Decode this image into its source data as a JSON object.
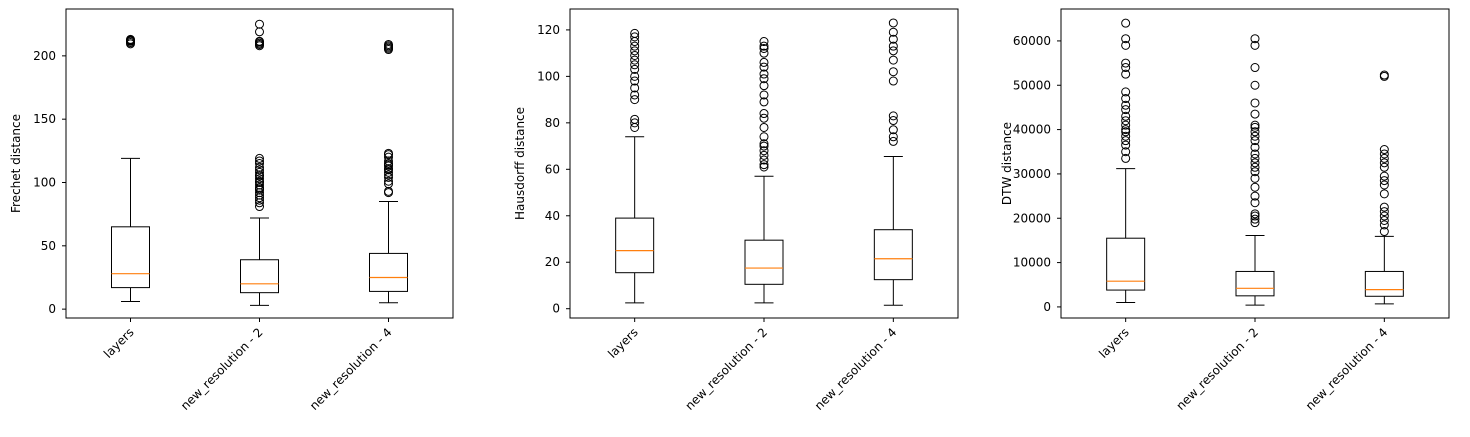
{
  "chart_data": [
    {
      "type": "boxplot",
      "ylabel": "Frechet distance",
      "categories": [
        "layers",
        "new_resolution - 2",
        "new_resolution - 4"
      ],
      "ylim": [
        -7,
        237
      ],
      "yticks": [
        0,
        50,
        100,
        150,
        200
      ],
      "ytick_labels": [
        "0",
        "50",
        "100",
        "150",
        "200"
      ],
      "boxes": [
        {
          "whislo": 6,
          "q1": 17,
          "med": 28,
          "q3": 65,
          "whishi": 119,
          "fliers": [
            209.5,
            210.5,
            211.5,
            212,
            212.5,
            213
          ]
        },
        {
          "whislo": 3,
          "q1": 13,
          "med": 20,
          "q3": 39,
          "whishi": 72,
          "fliers": [
            81,
            84,
            86,
            88,
            90,
            92,
            94,
            95,
            96,
            98,
            100,
            101,
            103,
            105,
            106,
            108,
            110,
            112,
            115,
            117,
            119,
            208,
            209,
            210,
            211,
            211.5,
            219,
            225
          ]
        },
        {
          "whislo": 5,
          "q1": 14,
          "med": 25,
          "q3": 44,
          "whishi": 85,
          "fliers": [
            92,
            93,
            99,
            101,
            104,
            106,
            108,
            110,
            111,
            113,
            114,
            115,
            117,
            120,
            122,
            123,
            205,
            206,
            207,
            208,
            209
          ]
        }
      ]
    },
    {
      "type": "boxplot",
      "ylabel": "Hausdorff distance",
      "categories": [
        "layers",
        "new_resolution - 2",
        "new_resolution - 4"
      ],
      "ylim": [
        -4,
        129
      ],
      "yticks": [
        0,
        20,
        40,
        60,
        80,
        100,
        120
      ],
      "ytick_labels": [
        "0",
        "20",
        "40",
        "60",
        "80",
        "100",
        "120"
      ],
      "boxes": [
        {
          "whislo": 2.5,
          "q1": 15.5,
          "med": 25,
          "q3": 39,
          "whishi": 74,
          "fliers": [
            78,
            80,
            81.5,
            90,
            92,
            95,
            98,
            100,
            103,
            105,
            107,
            109,
            111,
            113,
            115,
            117,
            118.5
          ]
        },
        {
          "whislo": 2.5,
          "q1": 10.5,
          "med": 17.5,
          "q3": 29.5,
          "whishi": 57,
          "fliers": [
            61,
            62,
            64,
            66,
            68,
            70,
            71,
            74,
            78,
            82,
            84,
            89,
            92,
            96,
            99,
            101,
            104,
            106,
            110,
            112,
            113,
            115
          ]
        },
        {
          "whislo": 1.5,
          "q1": 12.5,
          "med": 21.5,
          "q3": 34,
          "whishi": 65.5,
          "fliers": [
            72,
            74,
            77,
            81,
            83,
            98,
            102,
            107,
            111,
            113,
            116,
            119,
            123
          ]
        }
      ]
    },
    {
      "type": "boxplot",
      "ylabel": "DTW distance",
      "categories": [
        "layers",
        "new_resolution - 2",
        "new_resolution - 4"
      ],
      "ylim": [
        -2500,
        67200
      ],
      "yticks": [
        0,
        10000,
        20000,
        30000,
        40000,
        50000,
        60000
      ],
      "ytick_labels": [
        "0",
        "10000",
        "20000",
        "30000",
        "40000",
        "50000",
        "60000"
      ],
      "boxes": [
        {
          "whislo": 1000,
          "q1": 3800,
          "med": 5800,
          "q3": 15500,
          "whishi": 31200,
          "fliers": [
            33500,
            35000,
            36500,
            37500,
            38500,
            39500,
            40000,
            41000,
            42000,
            43000,
            44500,
            45500,
            47000,
            48500,
            52500,
            54000,
            55000,
            59000,
            60500,
            64000
          ]
        },
        {
          "whislo": 400,
          "q1": 2500,
          "med": 4200,
          "q3": 8000,
          "whishi": 16100,
          "fliers": [
            19000,
            19800,
            20500,
            21000,
            23500,
            25000,
            27000,
            29000,
            30500,
            31500,
            32500,
            33500,
            34500,
            36000,
            37500,
            38500,
            39500,
            40500,
            41000,
            43500,
            46000,
            50000,
            54000,
            59000,
            60500
          ]
        },
        {
          "whislo": 700,
          "q1": 2400,
          "med": 3900,
          "q3": 8000,
          "whishi": 15900,
          "fliers": [
            17000,
            18500,
            19500,
            20500,
            21500,
            22500,
            25500,
            27500,
            28500,
            29500,
            31500,
            32500,
            33500,
            34500,
            35500,
            52000,
            52300
          ]
        }
      ]
    }
  ]
}
